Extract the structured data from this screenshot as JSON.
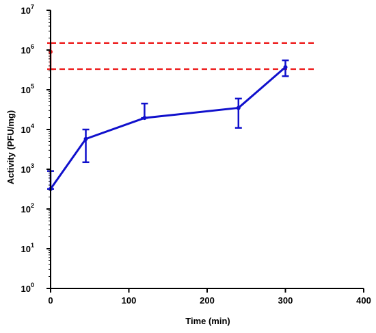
{
  "chart_data": {
    "type": "line",
    "title": "",
    "xlabel": "Time (min)",
    "ylabel": "Activity (PFU/mg)",
    "xlim": [
      0,
      400
    ],
    "x_ticks": [
      0,
      100,
      200,
      300,
      400
    ],
    "x_tick_labels": [
      "0",
      "100",
      "200",
      "300",
      "400"
    ],
    "y_scale": "log",
    "ylim": [
      1,
      10000000
    ],
    "y_tick_exponents": [
      0,
      1,
      2,
      3,
      4,
      5,
      6,
      7
    ],
    "y_tick_base": "10",
    "grid": false,
    "legend": "none",
    "series": [
      {
        "color": "#1010cc",
        "style": "solid",
        "points": [
          {
            "x": 0,
            "y": 320,
            "err_low": 320,
            "err_high": 900
          },
          {
            "x": 45,
            "y": 5800,
            "err_low": 1500,
            "err_high": 10000
          },
          {
            "x": 120,
            "y": 19500,
            "err_low": 19500,
            "err_high": 45000
          },
          {
            "x": 240,
            "y": 35000,
            "err_low": 11000,
            "err_high": 60000
          },
          {
            "x": 300,
            "y": 370000,
            "err_low": 220000,
            "err_high": 550000
          }
        ]
      },
      {
        "color": "#ee2222",
        "style": "point",
        "points": [
          {
            "x": 0,
            "y": 900000,
            "err_low": 330000,
            "err_high": 1500000
          }
        ]
      }
    ],
    "reference_lines": [
      {
        "y": 1500000,
        "x_from": 0,
        "x_to": 340,
        "color": "#ee2222",
        "style": "dashed"
      },
      {
        "y": 330000,
        "x_from": 0,
        "x_to": 340,
        "color": "#ee2222",
        "style": "dashed"
      }
    ]
  }
}
